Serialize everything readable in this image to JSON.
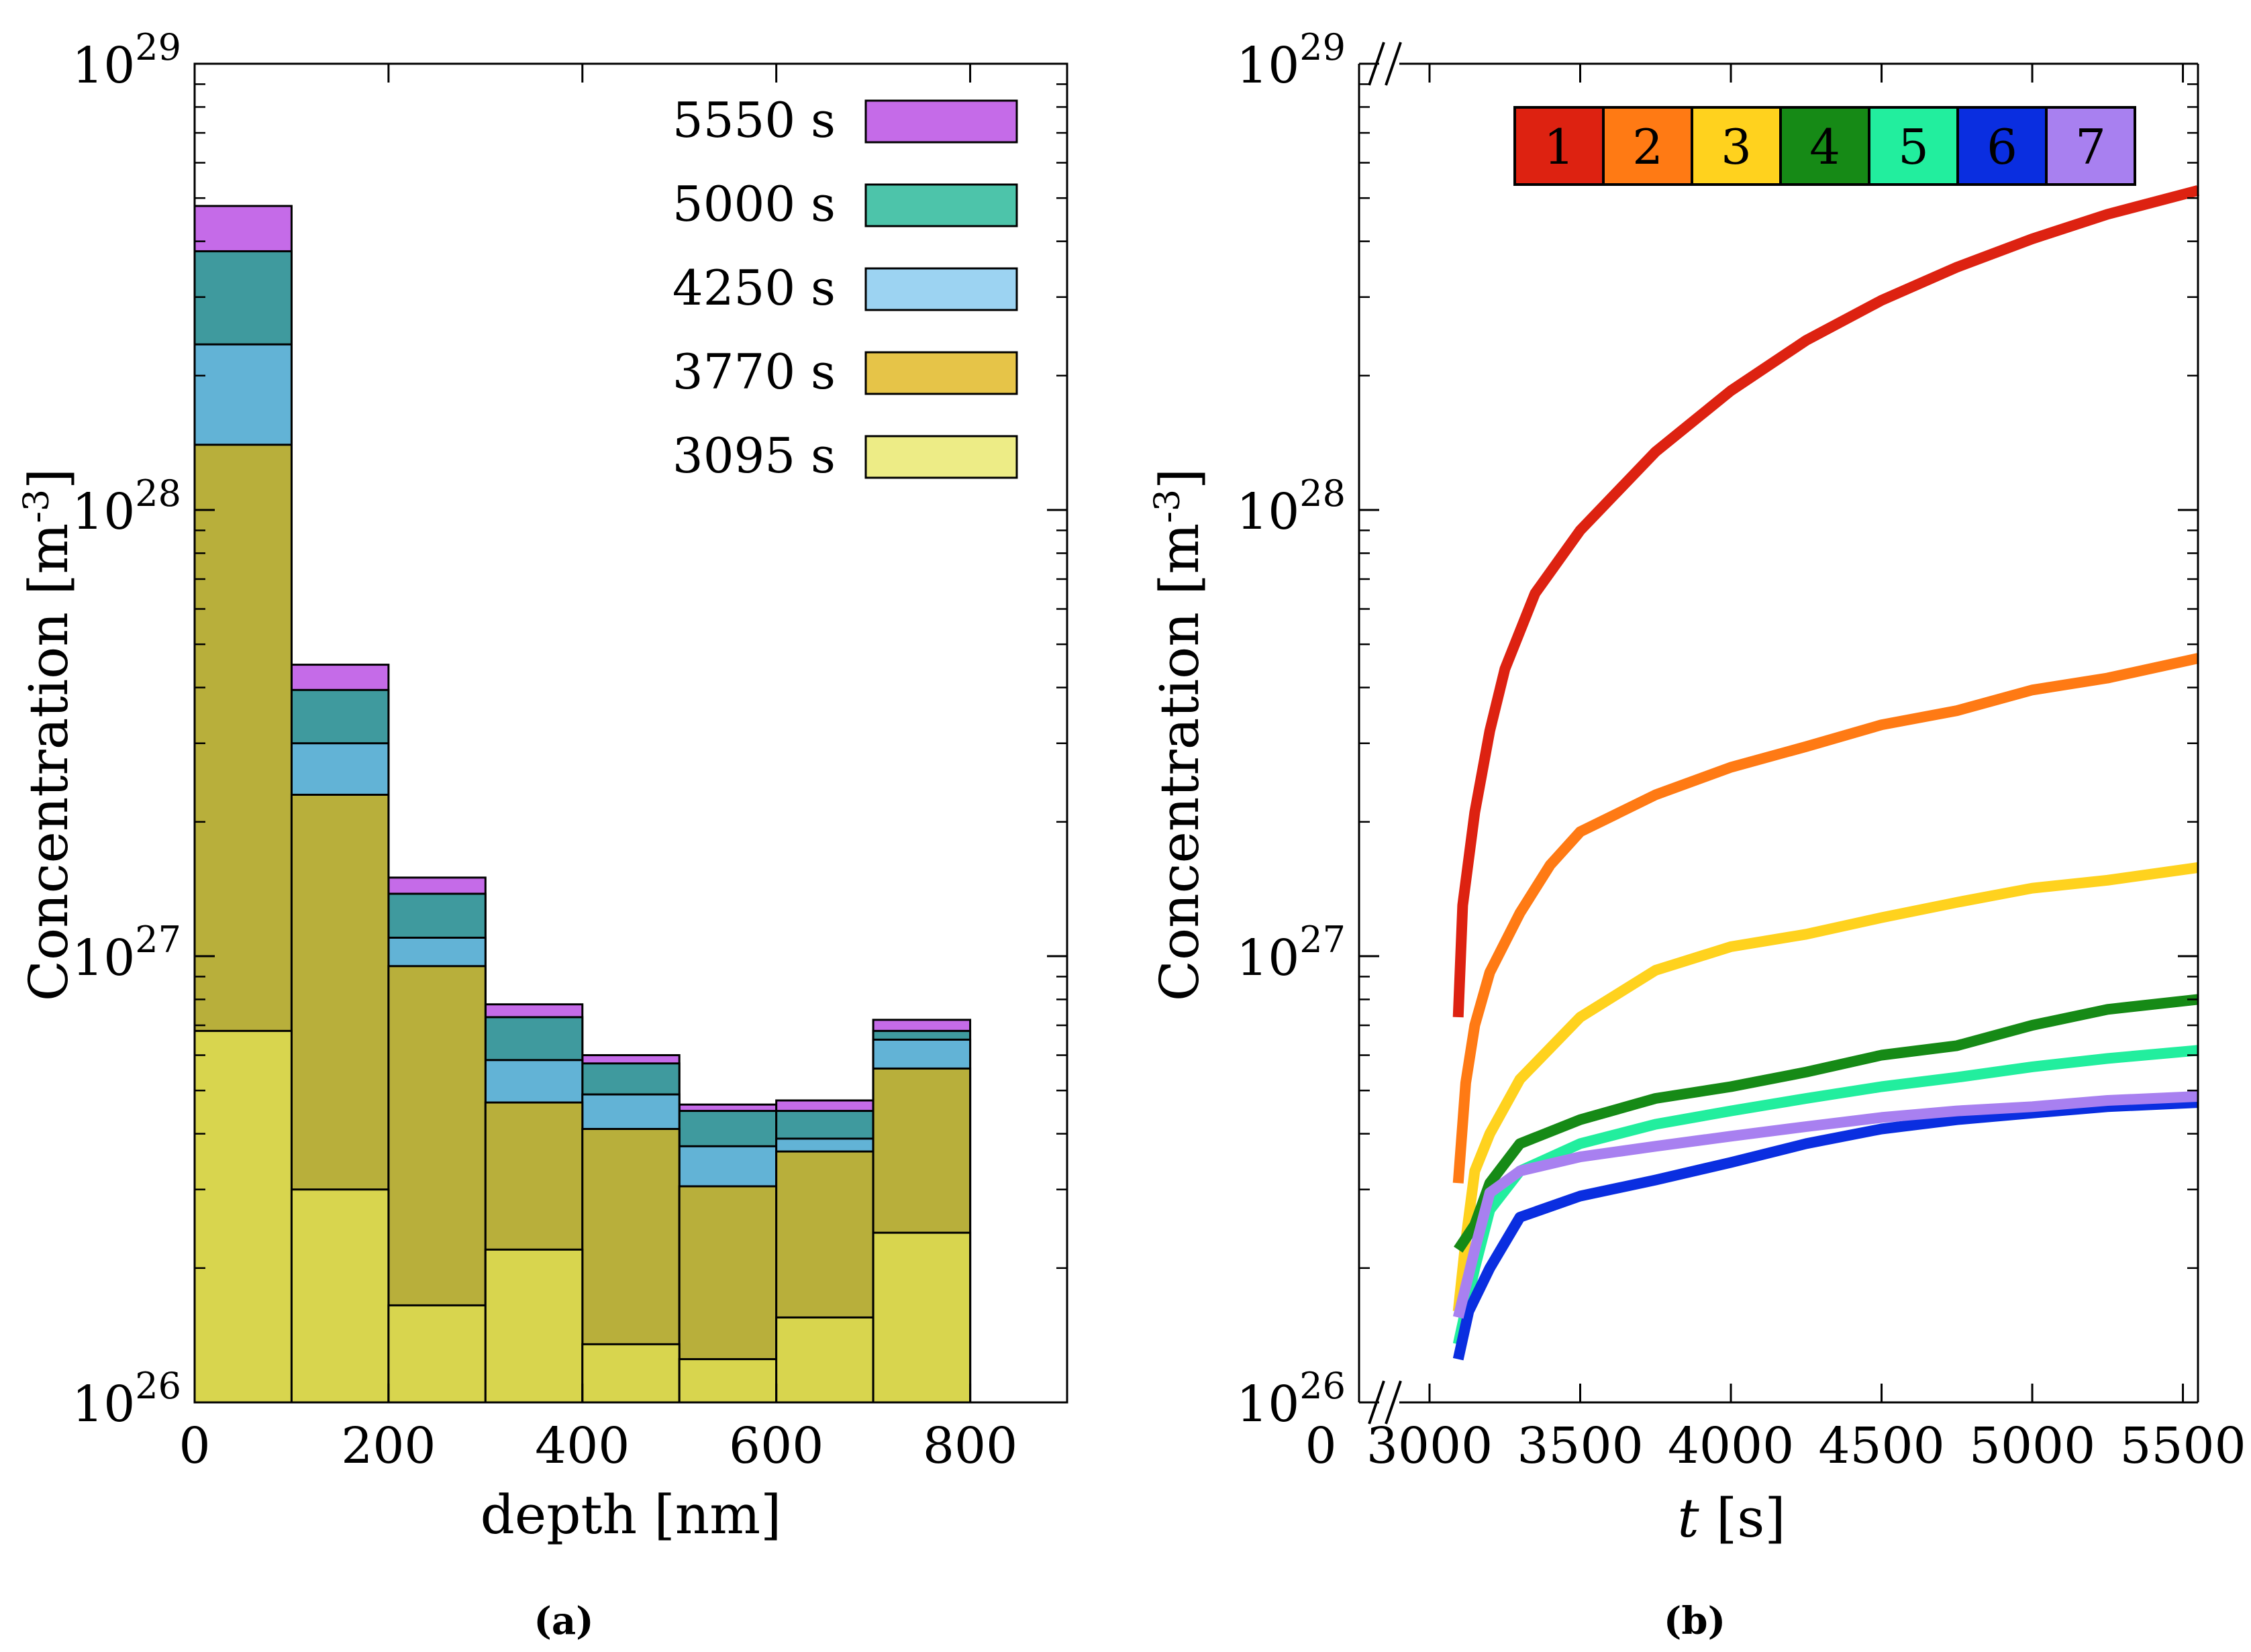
{
  "charts": [
    {
      "type": "bar",
      "panel_label": "(a)",
      "xlabel": "depth [nm]",
      "ylabel_text": "Concentration [m",
      "ylabel_exp": "-3",
      "ylabel_close": "]",
      "yscale": "log",
      "xlim": [
        0,
        900
      ],
      "ylim": [
        1e+26,
        1e+29
      ],
      "xticks": [
        0,
        200,
        400,
        600,
        800
      ],
      "xtick_labels": [
        "0",
        "200",
        "400",
        "600",
        "800"
      ],
      "ytick_labels": [
        {
          "base": "10",
          "exp": "26",
          "value": 1e+26
        },
        {
          "base": "10",
          "exp": "27",
          "value": 1e+27
        },
        {
          "base": "10",
          "exp": "28",
          "value": 1e+28
        },
        {
          "base": "10",
          "exp": "29",
          "value": 1e+29
        }
      ],
      "bin_edges": [
        0,
        100,
        200,
        300,
        400,
        500,
        600,
        700,
        800
      ],
      "legend_position": "top-right",
      "series": [
        {
          "name": "5550 s",
          "color": "#c56be8",
          "values": [
            4.8e+28,
            4.5e+27,
            1.5e+27,
            7.8e+26,
            6e+26,
            4.65e+26,
            4.75e+26,
            7.2e+26
          ]
        },
        {
          "name": "5000 s",
          "color": "#3f9a9e",
          "values": [
            3.8e+28,
            3.95e+27,
            1.38e+27,
            7.3e+26,
            5.75e+26,
            4.5e+26,
            4.5e+26,
            6.8e+26
          ]
        },
        {
          "name": "4250 s",
          "color": "#62b3d6",
          "values": [
            2.35e+28,
            3e+27,
            1.1e+27,
            5.85e+26,
            4.9e+26,
            3.75e+26,
            3.9e+26,
            6.5e+26
          ]
        },
        {
          "name": "3770 s",
          "color": "#b8af3b",
          "values": [
            1.4e+28,
            2.3e+27,
            9.5e+26,
            4.7e+26,
            4.1e+26,
            3.05e+26,
            3.65e+26,
            5.6e+26
          ]
        },
        {
          "name": "3095 s",
          "color": "#d8d54e",
          "values": [
            6.8e+26,
            3e+26,
            1.65e+26,
            2.2e+26,
            1.35e+26,
            1.25e+26,
            1.55e+26,
            2.4e+26
          ]
        }
      ],
      "legend_colors": [
        "#c56be8",
        "#4dc4aa",
        "#9cd3f2",
        "#e6c448",
        "#edec86"
      ]
    },
    {
      "type": "line",
      "panel_label": "(b)",
      "xlabel_italic": "t",
      "xlabel_rest": " [s]",
      "ylabel_text": "Concentration [m",
      "ylabel_exp": "-3",
      "ylabel_close": "]",
      "yscale": "log",
      "xlim": [
        3000,
        5550
      ],
      "ylim": [
        1e+26,
        1e+29
      ],
      "axis_break": true,
      "x_zero_label": "0",
      "xticks": [
        3000,
        3500,
        4000,
        4500,
        5000,
        5500
      ],
      "xtick_labels": [
        "3000",
        "3500",
        "4000",
        "4500",
        "5000",
        "5500"
      ],
      "ytick_labels": [
        {
          "base": "10",
          "exp": "26",
          "value": 1e+26
        },
        {
          "base": "10",
          "exp": "27",
          "value": 1e+27
        },
        {
          "base": "10",
          "exp": "28",
          "value": 1e+28
        },
        {
          "base": "10",
          "exp": "29",
          "value": 1e+29
        }
      ],
      "legend_position": "top-right",
      "series": [
        {
          "name": "1",
          "color": "#dd2211",
          "points": [
            [
              3095,
              7.3e+26
            ],
            [
              3110,
              1.3e+27
            ],
            [
              3150,
              2.1e+27
            ],
            [
              3200,
              3.2e+27
            ],
            [
              3250,
              4.4e+27
            ],
            [
              3350,
              6.5e+27
            ],
            [
              3500,
              9e+27
            ],
            [
              3750,
              1.35e+28
            ],
            [
              4000,
              1.85e+28
            ],
            [
              4250,
              2.4e+28
            ],
            [
              4500,
              2.95e+28
            ],
            [
              4750,
              3.5e+28
            ],
            [
              5000,
              4.05e+28
            ],
            [
              5250,
              4.6e+28
            ],
            [
              5550,
              5.2e+28
            ]
          ]
        },
        {
          "name": "2",
          "color": "#ff7a14",
          "points": [
            [
              3095,
              3.1e+26
            ],
            [
              3120,
              5.2e+26
            ],
            [
              3150,
              7e+26
            ],
            [
              3200,
              9.2e+26
            ],
            [
              3300,
              1.25e+27
            ],
            [
              3400,
              1.6e+27
            ],
            [
              3500,
              1.9e+27
            ],
            [
              3750,
              2.3e+27
            ],
            [
              4000,
              2.65e+27
            ],
            [
              4250,
              2.95e+27
            ],
            [
              4500,
              3.3e+27
            ],
            [
              4750,
              3.55e+27
            ],
            [
              5000,
              3.95e+27
            ],
            [
              5250,
              4.2e+27
            ],
            [
              5550,
              4.65e+27
            ]
          ]
        },
        {
          "name": "3",
          "color": "#ffd21e",
          "points": [
            [
              3095,
              1.6e+26
            ],
            [
              3120,
              2.3e+26
            ],
            [
              3150,
              3.3e+26
            ],
            [
              3200,
              4e+26
            ],
            [
              3300,
              5.3e+26
            ],
            [
              3500,
              7.3e+26
            ],
            [
              3750,
              9.3e+26
            ],
            [
              4000,
              1.05e+27
            ],
            [
              4250,
              1.12e+27
            ],
            [
              4500,
              1.22e+27
            ],
            [
              4750,
              1.32e+27
            ],
            [
              5000,
              1.42e+27
            ],
            [
              5250,
              1.48e+27
            ],
            [
              5550,
              1.58e+27
            ]
          ]
        },
        {
          "name": "4",
          "color": "#168a16",
          "points": [
            [
              3095,
              2.2e+26
            ],
            [
              3150,
              2.5e+26
            ],
            [
              3200,
              3.1e+26
            ],
            [
              3300,
              3.8e+26
            ],
            [
              3500,
              4.3e+26
            ],
            [
              3750,
              4.8e+26
            ],
            [
              4000,
              5.1e+26
            ],
            [
              4250,
              5.5e+26
            ],
            [
              4500,
              6e+26
            ],
            [
              4750,
              6.3e+26
            ],
            [
              5000,
              7e+26
            ],
            [
              5250,
              7.6e+26
            ],
            [
              5550,
              8e+26
            ]
          ]
        },
        {
          "name": "5",
          "color": "#22ee9e",
          "points": [
            [
              3095,
              1.35e+26
            ],
            [
              3150,
              2e+26
            ],
            [
              3200,
              2.7e+26
            ],
            [
              3300,
              3.3e+26
            ],
            [
              3500,
              3.8e+26
            ],
            [
              3750,
              4.2e+26
            ],
            [
              4000,
              4.5e+26
            ],
            [
              4250,
              4.8e+26
            ],
            [
              4500,
              5.1e+26
            ],
            [
              4750,
              5.35e+26
            ],
            [
              5000,
              5.65e+26
            ],
            [
              5250,
              5.9e+26
            ],
            [
              5550,
              6.15e+26
            ]
          ]
        },
        {
          "name": "6",
          "color": "#0a2ee0",
          "points": [
            [
              3095,
              1.25e+26
            ],
            [
              3130,
              1.6e+26
            ],
            [
              3200,
              2e+26
            ],
            [
              3300,
              2.6e+26
            ],
            [
              3500,
              2.9e+26
            ],
            [
              3750,
              3.15e+26
            ],
            [
              4000,
              3.45e+26
            ],
            [
              4250,
              3.8e+26
            ],
            [
              4500,
              4.1e+26
            ],
            [
              4750,
              4.3e+26
            ],
            [
              5000,
              4.45e+26
            ],
            [
              5250,
              4.6e+26
            ],
            [
              5550,
              4.7e+26
            ]
          ]
        },
        {
          "name": "7",
          "color": "#a880f0",
          "points": [
            [
              3095,
              1.55e+26
            ],
            [
              3150,
              2.2e+26
            ],
            [
              3200,
              2.95e+26
            ],
            [
              3300,
              3.3e+26
            ],
            [
              3500,
              3.55e+26
            ],
            [
              3750,
              3.75e+26
            ],
            [
              4000,
              3.95e+26
            ],
            [
              4250,
              4.15e+26
            ],
            [
              4500,
              4.35e+26
            ],
            [
              4750,
              4.5e+26
            ],
            [
              5000,
              4.6e+26
            ],
            [
              5250,
              4.75e+26
            ],
            [
              5550,
              4.85e+26
            ]
          ]
        }
      ]
    }
  ]
}
